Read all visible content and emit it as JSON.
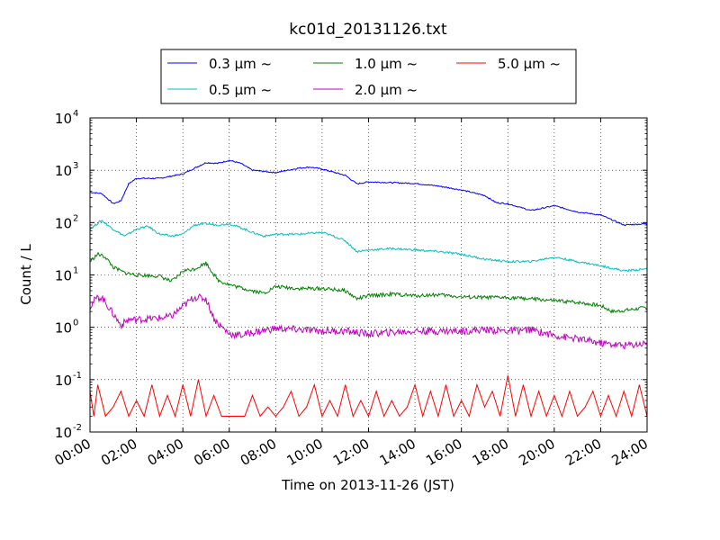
{
  "chart_data": {
    "type": "line",
    "title": "kc01d_20131126.txt",
    "xlabel": "Time on 2013-11-26 (JST)",
    "ylabel": "Count / L",
    "yscale": "log",
    "xlim": [
      "00:00",
      "24:00"
    ],
    "ylim": [
      0.01,
      10000
    ],
    "grid": true,
    "legend_position": "top-center",
    "x_ticks": [
      "00:00",
      "02:00",
      "04:00",
      "06:00",
      "08:00",
      "10:00",
      "12:00",
      "14:00",
      "16:00",
      "18:00",
      "20:00",
      "22:00",
      "24:00"
    ],
    "y_ticks": [
      {
        "value": 0.01,
        "label": "10",
        "exp": "-2"
      },
      {
        "value": 0.1,
        "label": "10",
        "exp": "-1"
      },
      {
        "value": 1,
        "label": "10",
        "exp": "0"
      },
      {
        "value": 10,
        "label": "10",
        "exp": "1"
      },
      {
        "value": 100,
        "label": "10",
        "exp": "2"
      },
      {
        "value": 1000,
        "label": "10",
        "exp": "3"
      },
      {
        "value": 10000,
        "label": "10",
        "exp": "4"
      }
    ],
    "series": [
      {
        "name": "0.3 μm ~",
        "color": "#0000ff",
        "x": [
          "00:00",
          "00:30",
          "01:00",
          "01:20",
          "01:40",
          "02:00",
          "03:00",
          "04:00",
          "05:00",
          "05:30",
          "06:00",
          "06:30",
          "07:00",
          "08:00",
          "09:00",
          "09:30",
          "10:00",
          "11:00",
          "11:30",
          "12:00",
          "13:00",
          "14:00",
          "15:00",
          "16:00",
          "17:00",
          "17:30",
          "18:00",
          "19:00",
          "20:00",
          "21:00",
          "22:00",
          "23:00",
          "24:00"
        ],
        "values": [
          380,
          360,
          230,
          260,
          550,
          700,
          700,
          850,
          1400,
          1350,
          1550,
          1350,
          1000,
          900,
          1100,
          1150,
          1050,
          800,
          550,
          600,
          580,
          560,
          500,
          420,
          330,
          240,
          230,
          170,
          210,
          160,
          140,
          90,
          95
        ]
      },
      {
        "name": "0.5 μm ~",
        "color": "#00bfbf",
        "x": [
          "00:00",
          "00:30",
          "01:00",
          "01:30",
          "02:00",
          "02:30",
          "03:00",
          "03:30",
          "04:00",
          "04:30",
          "05:00",
          "05:30",
          "06:00",
          "06:30",
          "07:00",
          "07:30",
          "08:00",
          "09:00",
          "10:00",
          "10:30",
          "11:00",
          "11:30",
          "12:00",
          "13:00",
          "14:00",
          "15:00",
          "16:00",
          "17:00",
          "18:00",
          "19:00",
          "20:00",
          "21:00",
          "22:00",
          "23:00",
          "24:00"
        ],
        "values": [
          75,
          110,
          75,
          55,
          75,
          85,
          60,
          55,
          60,
          90,
          95,
          90,
          95,
          80,
          65,
          55,
          60,
          60,
          65,
          55,
          45,
          28,
          30,
          32,
          30,
          28,
          25,
          20,
          18,
          18,
          22,
          18,
          15,
          12,
          13
        ]
      },
      {
        "name": "1.0 μm ~",
        "color": "#008000",
        "x": [
          "00:00",
          "00:20",
          "00:40",
          "01:00",
          "01:30",
          "02:00",
          "03:00",
          "03:30",
          "03:45",
          "04:00",
          "04:30",
          "05:00",
          "05:30",
          "06:00",
          "07:00",
          "07:30",
          "08:00",
          "09:00",
          "10:00",
          "11:00",
          "11:30",
          "12:00",
          "13:00",
          "14:00",
          "15:00",
          "16:00",
          "17:00",
          "18:00",
          "19:00",
          "20:00",
          "21:00",
          "22:00",
          "22:30",
          "23:00",
          "24:00"
        ],
        "values": [
          18,
          25,
          22,
          14,
          11,
          10,
          9.5,
          7.5,
          9,
          12,
          13,
          17,
          8,
          6.5,
          5,
          4.5,
          6,
          5.5,
          5.5,
          5,
          3.5,
          4,
          4.3,
          4,
          4.2,
          3.8,
          3.7,
          3.7,
          3.5,
          3.2,
          3.0,
          2.6,
          2.0,
          2.1,
          2.4
        ]
      },
      {
        "name": "2.0 μm ~",
        "color": "#bf00bf",
        "x": [
          "00:00",
          "00:15",
          "00:30",
          "01:00",
          "01:20",
          "01:40",
          "02:00",
          "03:00",
          "03:30",
          "04:00",
          "04:30",
          "05:00",
          "05:20",
          "05:30",
          "06:00",
          "06:30",
          "07:00",
          "08:00",
          "09:00",
          "10:00",
          "11:00",
          "12:00",
          "13:00",
          "14:00",
          "15:00",
          "16:00",
          "17:00",
          "18:00",
          "19:00",
          "20:00",
          "21:00",
          "22:00",
          "23:00",
          "24:00"
        ],
        "values": [
          2.5,
          3.5,
          3.8,
          1.8,
          1.1,
          1.4,
          1.4,
          1.5,
          1.6,
          2.5,
          3.8,
          3.5,
          1.5,
          1.2,
          0.75,
          0.7,
          0.8,
          0.95,
          0.9,
          0.85,
          0.85,
          0.75,
          0.8,
          0.85,
          0.85,
          0.85,
          0.9,
          0.85,
          0.9,
          0.7,
          0.6,
          0.5,
          0.45,
          0.5
        ]
      },
      {
        "name": "5.0 μm ~",
        "color": "#ff0000",
        "x": [
          "00:00",
          "00:10",
          "00:20",
          "00:40",
          "01:00",
          "01:20",
          "01:40",
          "02:00",
          "02:20",
          "02:40",
          "03:00",
          "03:20",
          "03:40",
          "04:00",
          "04:20",
          "04:40",
          "05:00",
          "05:20",
          "05:40",
          "06:00",
          "06:20",
          "06:40",
          "07:00",
          "07:20",
          "07:40",
          "08:00",
          "08:20",
          "08:40",
          "09:00",
          "09:20",
          "09:40",
          "10:00",
          "10:20",
          "10:40",
          "11:00",
          "11:20",
          "11:40",
          "12:00",
          "12:20",
          "12:40",
          "13:00",
          "13:20",
          "13:40",
          "14:00",
          "14:20",
          "14:40",
          "15:00",
          "15:20",
          "15:40",
          "16:00",
          "16:20",
          "16:40",
          "17:00",
          "17:20",
          "17:40",
          "18:00",
          "18:20",
          "18:40",
          "19:00",
          "19:20",
          "19:40",
          "20:00",
          "20:20",
          "20:40",
          "21:00",
          "21:20",
          "21:40",
          "22:00",
          "22:20",
          "22:40",
          "23:00",
          "23:20",
          "23:40",
          "24:00"
        ],
        "values": [
          0.06,
          0.02,
          0.08,
          0.02,
          0.03,
          0.06,
          0.02,
          0.04,
          0.02,
          0.08,
          0.02,
          0.05,
          0.02,
          0.08,
          0.02,
          0.1,
          0.02,
          0.05,
          0.02,
          0.02,
          0.02,
          0.02,
          0.05,
          0.02,
          0.03,
          0.02,
          0.03,
          0.06,
          0.02,
          0.03,
          0.08,
          0.02,
          0.04,
          0.02,
          0.08,
          0.02,
          0.04,
          0.02,
          0.06,
          0.02,
          0.04,
          0.02,
          0.03,
          0.08,
          0.02,
          0.06,
          0.02,
          0.08,
          0.02,
          0.04,
          0.02,
          0.08,
          0.03,
          0.06,
          0.02,
          0.12,
          0.02,
          0.08,
          0.02,
          0.06,
          0.02,
          0.05,
          0.02,
          0.06,
          0.02,
          0.03,
          0.06,
          0.02,
          0.05,
          0.02,
          0.06,
          0.02,
          0.08,
          0.02
        ]
      }
    ]
  }
}
